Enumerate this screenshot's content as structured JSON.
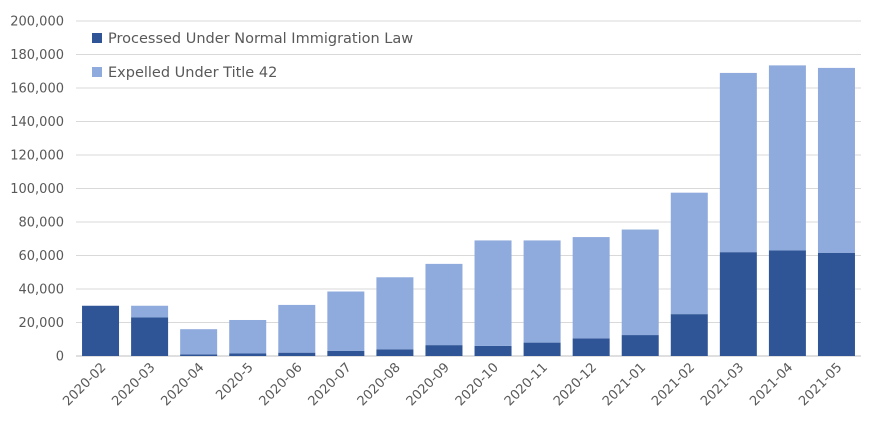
{
  "chart_data": {
    "type": "bar",
    "stacked": true,
    "categories": [
      "2020-02",
      "2020-03",
      "2020-04",
      "2020-5",
      "2020-06",
      "2020-07",
      "2020-08",
      "2020-09",
      "2020-10",
      "2020-11",
      "2020-12",
      "2021-01",
      "2021-02",
      "2021-03",
      "2021-04",
      "2021-05"
    ],
    "series": [
      {
        "name": "Processed Under Normal Immigration Law",
        "color": "#2f5597",
        "values": [
          30000,
          23000,
          1000,
          1500,
          2000,
          3000,
          4000,
          6500,
          6000,
          8000,
          10500,
          12500,
          25000,
          62000,
          63000,
          61500
        ]
      },
      {
        "name": "Expelled Under Title 42",
        "color": "#8faadc",
        "values": [
          0,
          7000,
          15000,
          20000,
          28500,
          35500,
          43000,
          48500,
          63000,
          61000,
          60500,
          63000,
          72500,
          107000,
          110500,
          110500
        ]
      }
    ],
    "title": "",
    "xlabel": "",
    "ylabel": "",
    "ylim": [
      0,
      200000
    ],
    "yticks": [
      0,
      20000,
      40000,
      60000,
      80000,
      100000,
      120000,
      140000,
      160000,
      180000,
      200000
    ],
    "ytick_labels": [
      "0",
      "20,000",
      "40,000",
      "60,000",
      "80,000",
      "100,000",
      "120,000",
      "140,000",
      "160,000",
      "180,000",
      "200,000"
    ],
    "grid": true,
    "legend_position": "top-left"
  }
}
